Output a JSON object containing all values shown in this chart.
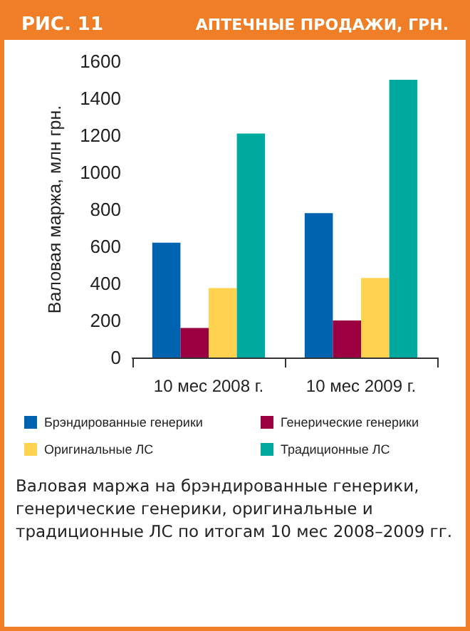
{
  "chart_data": {
    "type": "bar",
    "title": "РИС. 11",
    "subtitle": "АПТЕЧНЫЕ ПРОДАЖИ, ГРН.",
    "ylabel": "Валовая маржа, млн грн.",
    "categories": [
      "10 мес 2008 г.",
      "10 мес 2009 г."
    ],
    "series": [
      {
        "name": "Брэндированные генерики",
        "color": "#0063b0",
        "values": [
          620,
          780
        ]
      },
      {
        "name": "Генерические генерики",
        "color": "#9b0041",
        "values": [
          160,
          200
        ]
      },
      {
        "name": "Оригинальные ЛС",
        "color": "#ffd24f",
        "values": [
          375,
          430
        ]
      },
      {
        "name": "Традиционные ЛС",
        "color": "#00a99d",
        "values": [
          1210,
          1500
        ]
      }
    ],
    "ylim": [
      0,
      1600
    ],
    "yticks": [
      0,
      200,
      400,
      600,
      800,
      1000,
      1200,
      1400,
      1600
    ],
    "grid": false,
    "legend": "bottom",
    "annotations": [
      "Валовая маржа на брэндированные генерики, генерические генерики, оригинальные и традиционные ЛС по итогам 10 мес 2008–2009 гг."
    ]
  }
}
